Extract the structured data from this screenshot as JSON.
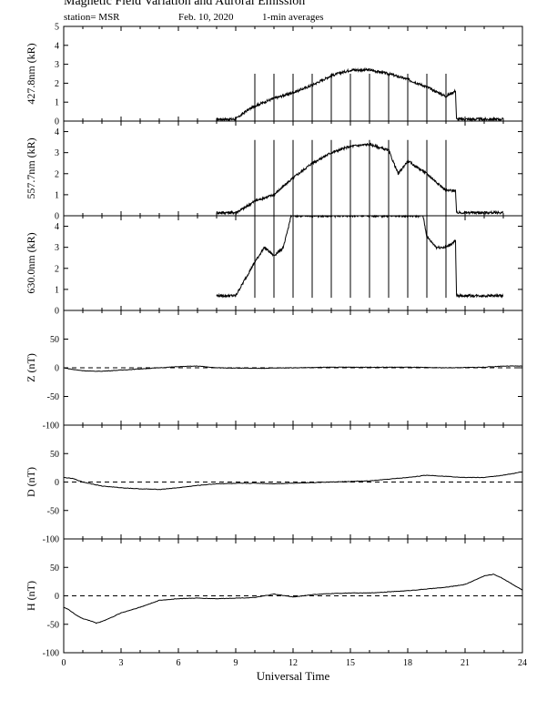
{
  "header": {
    "title": "Magnetic Field Variation and Auroral Emission",
    "station": "station= MSR",
    "date": "Feb. 10, 2020",
    "averaging": "1-min averages"
  },
  "chart_data": [
    {
      "type": "line",
      "panel": "427.8nm",
      "ylabel": "427.8nm (kR)",
      "ylim": [
        0,
        5
      ],
      "yticks": [
        0,
        1,
        2,
        3,
        4,
        5
      ],
      "xlim": [
        0,
        24
      ],
      "series": [
        {
          "x": [
            8.0,
            9.0,
            9.5,
            10.0,
            11.0,
            12.0,
            13.0,
            14.0,
            15.0,
            16.0,
            17.0,
            18.0,
            19.0,
            20.0,
            20.5,
            20.55,
            23.0
          ],
          "values": [
            0.1,
            0.1,
            0.5,
            0.8,
            1.2,
            1.5,
            1.9,
            2.4,
            2.7,
            2.7,
            2.5,
            2.2,
            1.8,
            1.3,
            1.6,
            0.1,
            0.1
          ]
        }
      ],
      "spike_times": [
        10,
        11,
        12,
        13,
        14,
        15,
        16,
        17,
        18,
        19,
        20
      ],
      "spike_range": [
        0,
        2.5
      ]
    },
    {
      "type": "line",
      "panel": "557.7nm",
      "ylabel": "557.7nm (kR)",
      "ylim": [
        0,
        4.5
      ],
      "yticks": [
        0,
        1,
        2,
        3,
        4
      ],
      "xlim": [
        0,
        24
      ],
      "series": [
        {
          "x": [
            8.0,
            9.0,
            9.5,
            10.0,
            11.0,
            12.0,
            13.0,
            14.0,
            15.0,
            16.0,
            17.0,
            17.5,
            18.0,
            19.0,
            20.0,
            20.5,
            20.55,
            23.0
          ],
          "values": [
            0.15,
            0.15,
            0.4,
            0.7,
            1.0,
            1.8,
            2.5,
            3.0,
            3.3,
            3.4,
            3.1,
            2.0,
            2.6,
            2.0,
            1.2,
            1.2,
            0.15,
            0.15
          ]
        }
      ],
      "spike_times": [
        10,
        11,
        12,
        13,
        14,
        15,
        16,
        17,
        18,
        19,
        20
      ],
      "spike_range": [
        0,
        3.6
      ]
    },
    {
      "type": "line",
      "panel": "630.0nm",
      "ylabel": "630.0nm (kR)",
      "ylim": [
        0,
        4.5
      ],
      "yticks": [
        0,
        1,
        2,
        3,
        4
      ],
      "xlim": [
        0,
        24
      ],
      "series": [
        {
          "x": [
            8.0,
            9.0,
            10.0,
            10.5,
            11.0,
            11.5,
            11.9,
            12.0,
            18.8,
            19.0,
            19.5,
            20.0,
            20.5,
            20.55,
            23.0
          ],
          "values": [
            0.7,
            0.7,
            2.3,
            3.0,
            2.6,
            3.0,
            4.5,
            4.5,
            4.5,
            3.5,
            3.0,
            3.0,
            3.3,
            0.7,
            0.7
          ]
        }
      ],
      "spike_times": [
        10,
        11,
        12,
        13,
        14,
        15,
        16,
        17,
        18,
        19,
        20
      ],
      "spike_range": [
        0.6,
        4.5
      ]
    },
    {
      "type": "line",
      "panel": "Z",
      "ylabel": "Z (nT)",
      "ylim": [
        -100,
        100
      ],
      "yticks": [
        -100,
        -50,
        0,
        50
      ],
      "xlim": [
        0,
        24
      ],
      "zero_line": true,
      "series": [
        {
          "x": [
            0,
            0.5,
            1.0,
            1.5,
            2.0,
            3.0,
            4.0,
            5.0,
            6.0,
            7.0,
            8.0,
            10.0,
            12.0,
            14.0,
            16.0,
            18.0,
            20.0,
            22.0,
            23.0,
            24.0
          ],
          "values": [
            0,
            -3,
            -5,
            -6,
            -6,
            -4,
            -2,
            0,
            2,
            3,
            0,
            -1,
            0,
            1,
            1,
            1,
            0,
            1,
            3,
            3
          ]
        }
      ]
    },
    {
      "type": "line",
      "panel": "D",
      "ylabel": "D (nT)",
      "ylim": [
        -100,
        100
      ],
      "yticks": [
        -100,
        -50,
        0,
        50
      ],
      "xlim": [
        0,
        24
      ],
      "zero_line": true,
      "series": [
        {
          "x": [
            0,
            0.5,
            1.0,
            2.0,
            3.0,
            4.0,
            5.0,
            6.0,
            7.0,
            8.0,
            10.0,
            11.0,
            12.0,
            14.0,
            16.0,
            18.0,
            19.0,
            20.0,
            21.0,
            22.0,
            23.0,
            24.0
          ],
          "values": [
            8,
            6,
            0,
            -7,
            -10,
            -12,
            -13,
            -10,
            -6,
            -3,
            -2,
            -3,
            -2,
            0,
            2,
            8,
            12,
            10,
            8,
            8,
            12,
            18
          ]
        }
      ]
    },
    {
      "type": "line",
      "panel": "H",
      "ylabel": "H (nT)",
      "ylim": [
        -100,
        100
      ],
      "yticks": [
        -100,
        -50,
        0,
        50
      ],
      "xlim": [
        0,
        24
      ],
      "xlabel": "Universal Time",
      "xticks": [
        0,
        3,
        6,
        9,
        12,
        15,
        18,
        21,
        24
      ],
      "zero_line": true,
      "series": [
        {
          "x": [
            0,
            0.3,
            0.7,
            1.0,
            1.5,
            1.7,
            2.0,
            2.5,
            3.0,
            4.0,
            5.0,
            6.0,
            7.0,
            8.0,
            9.0,
            10.0,
            11.0,
            12.0,
            13.0,
            14.0,
            15.0,
            16.0,
            17.0,
            18.0,
            19.0,
            20.0,
            21.0,
            22.0,
            22.5,
            23.0,
            24.0
          ],
          "values": [
            -20,
            -25,
            -35,
            -40,
            -45,
            -48,
            -45,
            -38,
            -30,
            -20,
            -8,
            -5,
            -4,
            -5,
            -4,
            -3,
            3,
            -2,
            2,
            4,
            5,
            5,
            7,
            9,
            12,
            15,
            20,
            35,
            38,
            30,
            10
          ]
        }
      ]
    }
  ]
}
